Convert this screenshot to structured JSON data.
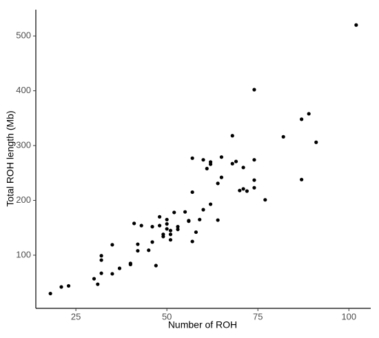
{
  "chart_data": {
    "type": "scatter",
    "x_label": "Number of ROH",
    "y_label": "Total ROH length (Mb)",
    "color": "#000000",
    "xlim": [
      14,
      106
    ],
    "ylim": [
      3,
      548
    ],
    "xticks": [
      25,
      50,
      75,
      100
    ],
    "yticks": [
      100,
      200,
      300,
      400,
      500
    ],
    "grid": false,
    "series": [
      {
        "x": [
          18,
          21,
          23,
          30,
          31,
          32,
          32,
          32,
          35,
          35,
          37,
          40,
          40,
          41,
          42,
          42,
          43,
          45,
          46,
          46,
          47,
          48,
          48,
          49,
          49,
          50,
          50,
          50,
          51,
          51,
          51,
          52,
          53,
          53,
          55,
          56,
          56,
          57,
          57,
          57,
          58,
          59,
          60,
          60,
          61,
          62,
          62,
          62,
          64,
          64,
          65,
          65,
          68,
          68,
          69,
          70,
          71,
          71,
          72,
          74,
          74,
          74,
          74,
          77,
          82,
          87,
          87,
          89,
          91,
          102
        ],
        "values": [
          30,
          42,
          44,
          57,
          47,
          99,
          91,
          67,
          66,
          119,
          76,
          83,
          85,
          158,
          120,
          108,
          154,
          109,
          152,
          124,
          81,
          170,
          154,
          138,
          134,
          165,
          157,
          148,
          145,
          138,
          128,
          178,
          147,
          152,
          179,
          163,
          162,
          277,
          215,
          125,
          142,
          165,
          274,
          183,
          258,
          270,
          266,
          193,
          231,
          164,
          279,
          242,
          318,
          267,
          271,
          218,
          260,
          221,
          217,
          274,
          237,
          223,
          402,
          201,
          316,
          348,
          238,
          358,
          306,
          520
        ]
      }
    ]
  }
}
